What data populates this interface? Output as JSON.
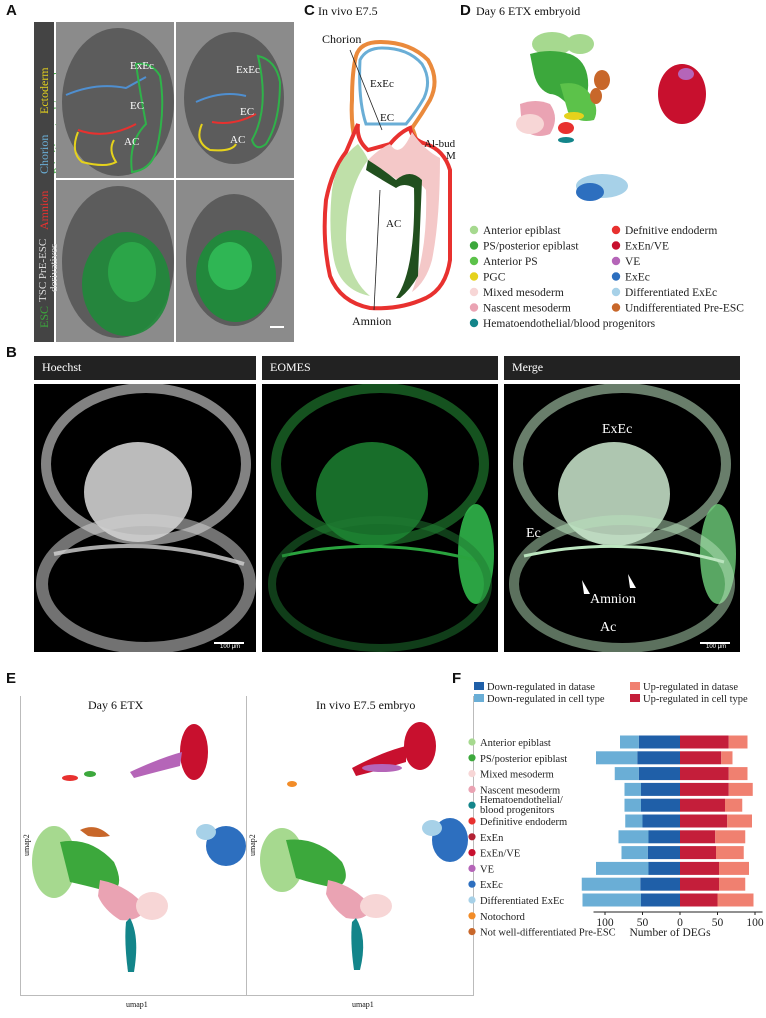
{
  "panels": {
    "A": {
      "label": "A",
      "side_labels": {
        "ectoderm": "Ectoderm",
        "chorion": "Chorion",
        "amnion": "Amnion",
        "primitive_streak": "Primitive streak/mesoderm",
        "tsc": "TSC PrE-ESC",
        "derivatives": "derivatives",
        "esc": "ESC"
      },
      "tissue_labels": {
        "exec": "ExEc",
        "ec": "EC",
        "ac": "AC"
      }
    },
    "B": {
      "label": "B",
      "headers": [
        "Hoechst",
        "EOMES",
        "Merge"
      ],
      "scale_bar": "100 μm",
      "merge_labels": {
        "exec": "ExEc",
        "ec": "Ec",
        "amnion": "Amnion",
        "ac": "Ac"
      }
    },
    "C": {
      "label": "C",
      "title": "In vivo E7.5",
      "labels": {
        "chorion": "Chorion",
        "exec": "ExEc",
        "ec": "EC",
        "albud": "Al-bud",
        "m": "M",
        "ac": "AC",
        "amnion": "Amnion"
      }
    },
    "D": {
      "label": "D",
      "title": "Day 6 ETX embryoid",
      "legend": [
        {
          "name": "Anterior epiblast",
          "color": "#a6d98f"
        },
        {
          "name": "Defnitive endoderm",
          "color": "#e8312f"
        },
        {
          "name": "PS/posterior epiblast",
          "color": "#3ca83c"
        },
        {
          "name": "ExEn/VE",
          "color": "#c8102e"
        },
        {
          "name": "Anterior PS",
          "color": "#5cc24a"
        },
        {
          "name": "VE",
          "color": "#b565b8"
        },
        {
          "name": "PGC",
          "color": "#e5d21c"
        },
        {
          "name": "ExEc",
          "color": "#2d6fbf"
        },
        {
          "name": "Mixed mesoderm",
          "color": "#f7d6d6"
        },
        {
          "name": "Differentiated ExEc",
          "color": "#a7d1e8"
        },
        {
          "name": "Nascent mesoderm",
          "color": "#eaa3b3"
        },
        {
          "name": "Undifferentiated Pre-ESC",
          "color": "#c8672a"
        },
        {
          "name": "Hematoendothelial/blood progenitors",
          "color": "#13858a"
        }
      ]
    },
    "E": {
      "label": "E",
      "left_title": "Day 6 ETX",
      "right_title": "In vivo E7.5 embryo",
      "xlabel": "umap1",
      "ylabel": "umap2"
    },
    "F": {
      "label": "F"
    }
  },
  "chart_data": {
    "type": "bar",
    "orientation": "horizontal-diverging",
    "xlabel": "Number of DEGs",
    "xticks": [
      "100",
      "50",
      "0",
      "50",
      "100"
    ],
    "xlim": [
      -110,
      110
    ],
    "legend_items": [
      {
        "name": "Down-regulated in datase",
        "color": "#1f5fa8"
      },
      {
        "name": "Up-regulated in datase",
        "color": "#f08070"
      },
      {
        "name": "Down-regulated in cell type",
        "color": "#6aaed6"
      },
      {
        "name": "Up-regulated in cell type",
        "color": "#c41e3a"
      }
    ],
    "categories": [
      {
        "name": "Anterior epiblast",
        "color": "#a6d98f"
      },
      {
        "name": "PS/posterior epiblast",
        "color": "#3ca83c"
      },
      {
        "name": "Mixed mesoderm",
        "color": "#f7d6d6"
      },
      {
        "name": "Nascent mesoderm",
        "color": "#eaa3b3"
      },
      {
        "name": "Hematoendothelial/",
        "name2": "blood progenitors",
        "color": "#13858a"
      },
      {
        "name": "Definitive endoderm",
        "color": "#e8312f"
      },
      {
        "name": "ExEn",
        "color": "#b22234"
      },
      {
        "name": "ExEn/VE",
        "color": "#c8102e"
      },
      {
        "name": "VE",
        "color": "#b565b8"
      },
      {
        "name": "ExEc",
        "color": "#2d6fbf"
      },
      {
        "name": "Differentiated ExEc",
        "color": "#a7d1e8"
      },
      {
        "name": "Notochord",
        "color": "#f28c28"
      },
      {
        "name": "Not well-differentiated Pre-ESC",
        "color": "#c8672a"
      }
    ],
    "series": [
      {
        "name": "Down-regulated in datase",
        "values": [
          55,
          57,
          55,
          52,
          52,
          50,
          42,
          43,
          42,
          53,
          52,
          null,
          null
        ]
      },
      {
        "name": "Down-regulated in cell type",
        "values": [
          25,
          55,
          32,
          22,
          22,
          23,
          40,
          35,
          70,
          78,
          78,
          null,
          null
        ]
      },
      {
        "name": "Up-regulated in datase",
        "values": [
          65,
          55,
          65,
          65,
          60,
          63,
          47,
          48,
          52,
          52,
          50,
          null,
          null
        ]
      },
      {
        "name": "Up-regulated in cell type",
        "values": [
          25,
          15,
          25,
          32,
          23,
          33,
          40,
          37,
          40,
          35,
          48,
          null,
          null
        ]
      }
    ]
  }
}
